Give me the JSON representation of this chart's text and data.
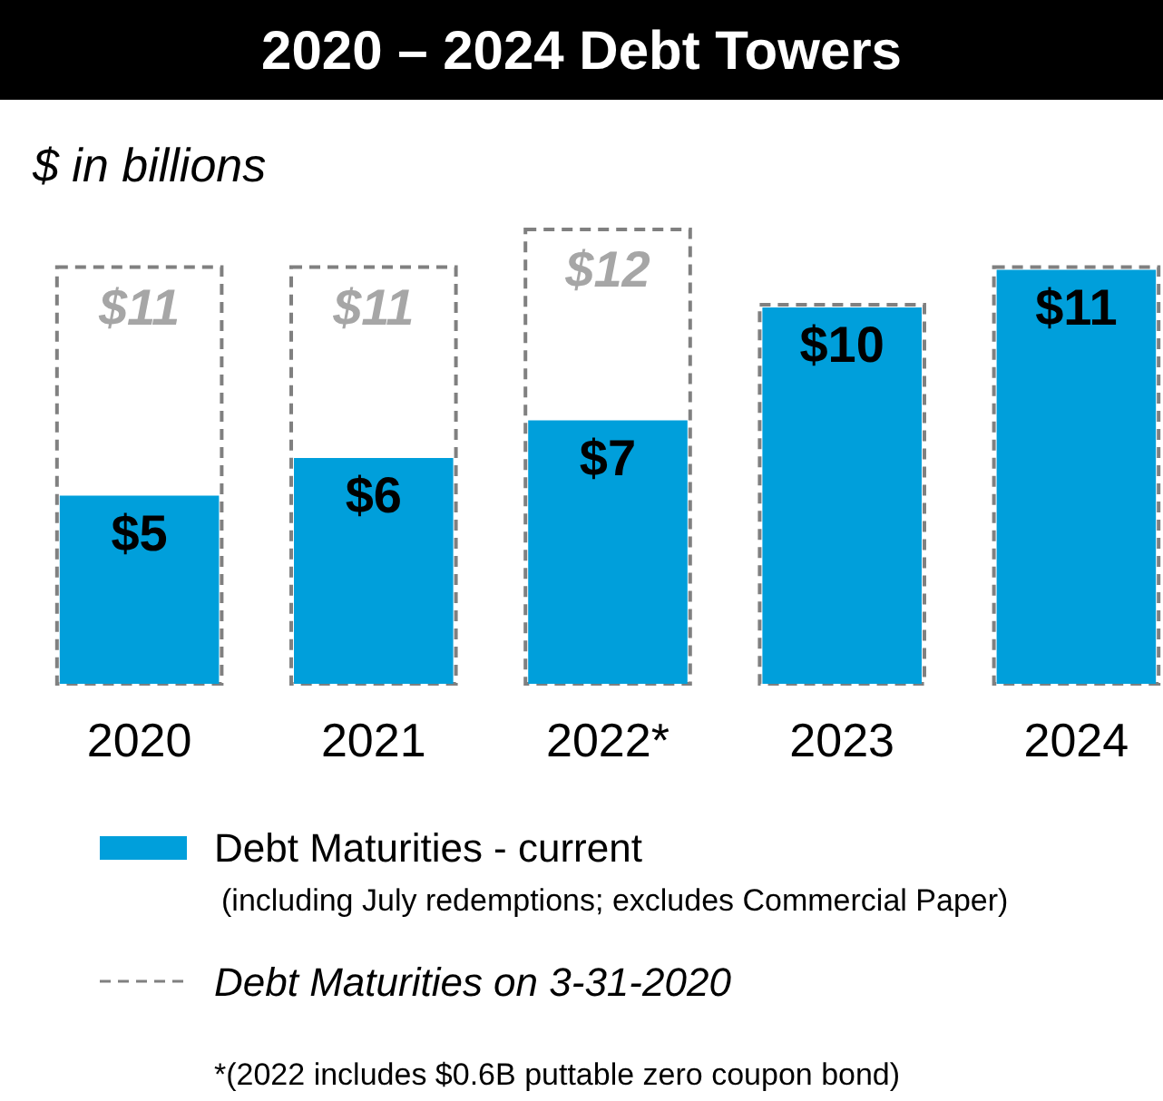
{
  "chart_data": {
    "type": "bar",
    "title": "2020 – 2024 Debt Towers",
    "subtitle": "$ in billions",
    "categories": [
      "2020",
      "2021",
      "2022*",
      "2023",
      "2024"
    ],
    "series": [
      {
        "name": "Debt Maturities on 3-31-2020",
        "color": "#808080",
        "line_style": "dashed",
        "values": [
          11,
          11,
          12,
          10,
          11
        ],
        "value_labels": [
          "$11",
          "$11",
          "$12",
          null,
          null
        ]
      },
      {
        "name": "Debt Maturities - current",
        "color": "#009fdb",
        "values": [
          5,
          6,
          7,
          10,
          11
        ],
        "value_labels": [
          "$5",
          "$6",
          "$7",
          "$10",
          "$11"
        ]
      }
    ],
    "legend": "bottom",
    "annotations": [
      "(including July redemptions; excludes Commercial Paper)",
      "*(2022 includes $0.6B puttable zero coupon bond)"
    ]
  }
}
